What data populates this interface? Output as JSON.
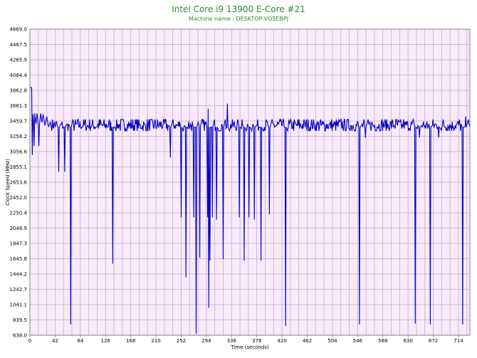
{
  "chart_data": {
    "type": "line",
    "title": "Intel Core i9 13900 E-Core #21",
    "subtitle": "Machine name : DESKTOP-VO5EBPJ",
    "xlabel": "Time (seconds)",
    "ylabel": "Clock Speed (MHz)",
    "xlim": [
      0,
      733
    ],
    "ylim": [
      638.0,
      4669.0
    ],
    "x_ticks": [
      0,
      42,
      84,
      126,
      168,
      210,
      252,
      294,
      336,
      378,
      420,
      462,
      504,
      546,
      588,
      630,
      672,
      714
    ],
    "y_ticks": [
      638.0,
      839.5,
      1041.1,
      1242.7,
      1444.2,
      1645.8,
      1847.3,
      2048.9,
      2250.4,
      2452.0,
      2653.6,
      2855.1,
      3056.6,
      3258.2,
      3459.7,
      3661.3,
      3862.8,
      4064.4,
      4265.9,
      4467.5,
      4669.0
    ],
    "grid": true,
    "colors": {
      "line": "#0000c0",
      "plot_bg": "#f7eafa",
      "grid": "#c9a9cf",
      "title": "#2e8b2e"
    },
    "series": [
      {
        "baseline": 3380,
        "points": [
          [
            0,
            3900
          ],
          [
            3,
            3900
          ],
          [
            3.5,
            3380
          ],
          [
            4,
            3010
          ],
          [
            5,
            3550
          ],
          [
            6,
            3440
          ],
          [
            7,
            3130
          ],
          [
            8,
            3560
          ],
          [
            10,
            3420
          ],
          [
            12,
            3560
          ],
          [
            14,
            3380
          ],
          [
            15,
            3130
          ],
          [
            16,
            3420
          ],
          [
            18,
            3560
          ],
          [
            20,
            3440
          ],
          [
            22,
            3550
          ],
          [
            25,
            3400
          ],
          [
            28,
            3520
          ],
          [
            31,
            3380
          ],
          [
            34,
            3450
          ],
          [
            47,
            3380
          ],
          [
            48,
            2790
          ],
          [
            49,
            3380
          ],
          [
            57,
            3380
          ],
          [
            58,
            2790
          ],
          [
            59,
            3380
          ],
          [
            67,
            3380
          ],
          [
            68,
            780
          ],
          [
            69,
            3380
          ],
          [
            137,
            3380
          ],
          [
            138,
            1580
          ],
          [
            139,
            3380
          ],
          [
            233,
            3380
          ],
          [
            234,
            2980
          ],
          [
            235,
            3380
          ],
          [
            251,
            3380
          ],
          [
            252,
            2190
          ],
          [
            253,
            3380
          ],
          [
            259,
            3380
          ],
          [
            260,
            1400
          ],
          [
            261,
            3380
          ],
          [
            272,
            3380
          ],
          [
            273,
            2190
          ],
          [
            274,
            3380
          ],
          [
            276,
            3380
          ],
          [
            277,
            660
          ],
          [
            278,
            3380
          ],
          [
            282,
            3380
          ],
          [
            283,
            1660
          ],
          [
            284,
            3380
          ],
          [
            295,
            3380
          ],
          [
            296,
            2190
          ],
          [
            297,
            3620
          ],
          [
            298,
            1000
          ],
          [
            299,
            3380
          ],
          [
            300,
            1620
          ],
          [
            301,
            3380
          ],
          [
            303,
            3380
          ],
          [
            304,
            2190
          ],
          [
            305,
            3380
          ],
          [
            310,
            3380
          ],
          [
            311,
            2160
          ],
          [
            312,
            3380
          ],
          [
            321,
            3380
          ],
          [
            322,
            1640
          ],
          [
            323,
            3380
          ],
          [
            328,
            3380
          ],
          [
            329,
            3690
          ],
          [
            330,
            3380
          ],
          [
            348,
            3380
          ],
          [
            349,
            2190
          ],
          [
            350,
            3380
          ],
          [
            356,
            3380
          ],
          [
            357,
            1620
          ],
          [
            358,
            3380
          ],
          [
            364,
            3380
          ],
          [
            365,
            2190
          ],
          [
            366,
            3380
          ],
          [
            373,
            3380
          ],
          [
            374,
            2160
          ],
          [
            375,
            3380
          ],
          [
            384,
            3380
          ],
          [
            385,
            1620
          ],
          [
            386,
            3380
          ],
          [
            398,
            3380
          ],
          [
            399,
            2230
          ],
          [
            400,
            3380
          ],
          [
            425,
            3380
          ],
          [
            426,
            760
          ],
          [
            427,
            3380
          ],
          [
            548,
            3380
          ],
          [
            549,
            780
          ],
          [
            550,
            3380
          ],
          [
            558,
            3380
          ],
          [
            559,
            3240
          ],
          [
            560,
            3380
          ],
          [
            641,
            3380
          ],
          [
            642,
            790
          ],
          [
            643,
            3380
          ],
          [
            648,
            3380
          ],
          [
            649,
            3240
          ],
          [
            650,
            3380
          ],
          [
            666,
            3380
          ],
          [
            667,
            780
          ],
          [
            668,
            3380
          ],
          [
            680,
            3380
          ],
          [
            681,
            3240
          ],
          [
            682,
            3380
          ],
          [
            720,
            3380
          ],
          [
            721,
            780
          ],
          [
            722,
            3380
          ],
          [
            725,
            3380
          ],
          [
            726,
            3520
          ],
          [
            727,
            3380
          ],
          [
            733,
            3380
          ]
        ]
      }
    ]
  }
}
